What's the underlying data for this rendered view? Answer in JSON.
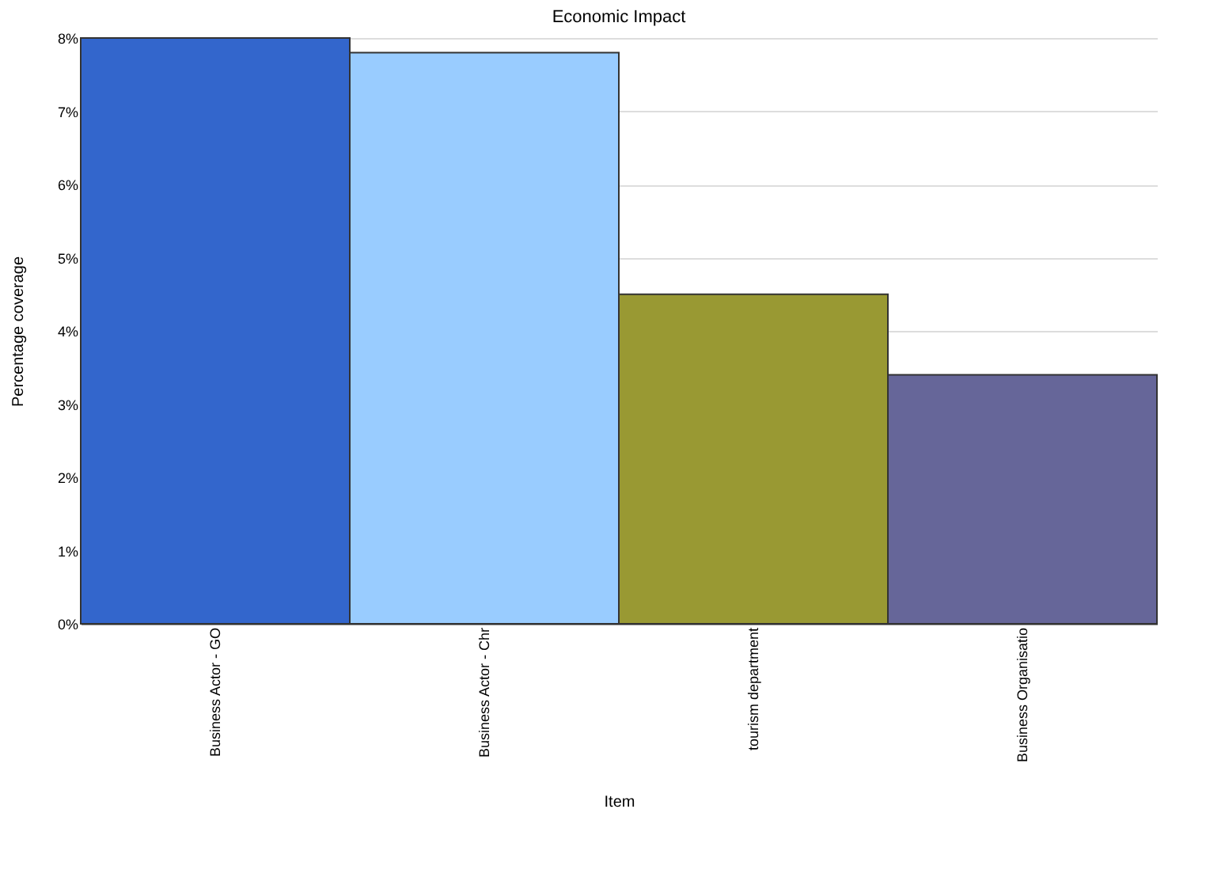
{
  "chart_data": {
    "type": "bar",
    "title": "Economic Impact",
    "xlabel": "Item",
    "ylabel": "Percentage coverage",
    "categories": [
      "Business Actor - GO",
      "Business Actor - Chr",
      "tourism department",
      "Business Organisatio"
    ],
    "values": [
      8.0,
      7.8,
      4.5,
      3.4
    ],
    "colors": [
      "#3366cc",
      "#99ccff",
      "#999933",
      "#666699"
    ],
    "ylim": [
      0,
      8
    ],
    "yticks": [
      {
        "value": 0,
        "label": "0%"
      },
      {
        "value": 1,
        "label": "1%"
      },
      {
        "value": 2,
        "label": "2%"
      },
      {
        "value": 3,
        "label": "3%"
      },
      {
        "value": 4,
        "label": "4%"
      },
      {
        "value": 5,
        "label": "5%"
      },
      {
        "value": 6,
        "label": "6%"
      },
      {
        "value": 7,
        "label": "7%"
      },
      {
        "value": 8,
        "label": "8%"
      }
    ],
    "grid": "y"
  }
}
